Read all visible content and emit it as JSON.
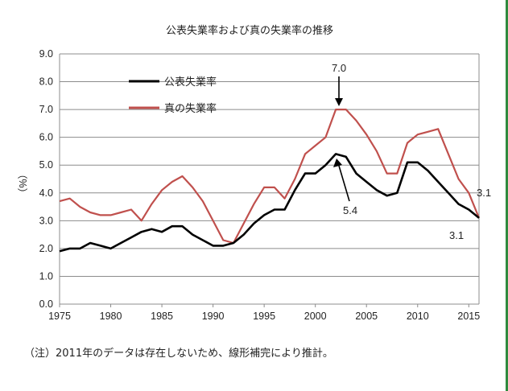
{
  "chart_data": {
    "type": "line",
    "title": "公表失業率および真の失業率の推移",
    "ylabel": "（%）",
    "xlabel": "",
    "ylim": [
      0,
      9
    ],
    "xlim": [
      1975,
      2016
    ],
    "yticks": [
      "0.0",
      "1.0",
      "2.0",
      "3.0",
      "4.0",
      "5.0",
      "6.0",
      "7.0",
      "8.0",
      "9.0"
    ],
    "xticks": [
      "1975",
      "1980",
      "1985",
      "1990",
      "1995",
      "2000",
      "2005",
      "2010",
      "2015"
    ],
    "grid": true,
    "legend_position": "top-left",
    "x": [
      1975,
      1976,
      1977,
      1978,
      1979,
      1980,
      1981,
      1982,
      1983,
      1984,
      1985,
      1986,
      1987,
      1988,
      1989,
      1990,
      1991,
      1992,
      1993,
      1994,
      1995,
      1996,
      1997,
      1998,
      1999,
      2000,
      2001,
      2002,
      2003,
      2004,
      2005,
      2006,
      2007,
      2008,
      2009,
      2010,
      2011,
      2012,
      2013,
      2014,
      2015,
      2016
    ],
    "series": [
      {
        "name": "公表失業率",
        "color": "#000000",
        "values": [
          1.9,
          2.0,
          2.0,
          2.2,
          2.1,
          2.0,
          2.2,
          2.4,
          2.6,
          2.7,
          2.6,
          2.8,
          2.8,
          2.5,
          2.3,
          2.1,
          2.1,
          2.2,
          2.5,
          2.9,
          3.2,
          3.4,
          3.4,
          4.1,
          4.7,
          4.7,
          5.0,
          5.4,
          5.3,
          4.7,
          4.4,
          4.1,
          3.9,
          4.0,
          5.1,
          5.1,
          4.8,
          4.4,
          4.0,
          3.6,
          3.4,
          3.1
        ]
      },
      {
        "name": "真の失業率",
        "color": "#c0504d",
        "values": [
          3.7,
          3.8,
          3.5,
          3.3,
          3.2,
          3.2,
          3.3,
          3.4,
          3.0,
          3.6,
          4.1,
          4.4,
          4.6,
          4.2,
          3.7,
          3.0,
          2.3,
          2.2,
          2.9,
          3.6,
          4.2,
          4.2,
          3.8,
          4.5,
          5.4,
          5.7,
          6.0,
          7.0,
          7.0,
          6.6,
          6.1,
          5.5,
          4.7,
          4.7,
          5.8,
          6.1,
          6.2,
          6.3,
          5.4,
          4.5,
          4.0,
          3.1
        ]
      }
    ],
    "annotations": [
      {
        "text": "7.0",
        "x": 2002.5,
        "y": 7.0,
        "arrow": true
      },
      {
        "text": "5.4",
        "x": 2002,
        "y": 5.4,
        "arrow": true
      },
      {
        "text": "3.1",
        "x": 2016,
        "y": 3.1,
        "series": "真の失業率"
      },
      {
        "text": "3.1",
        "x": 2016,
        "y": 3.1,
        "series": "公表失業率"
      }
    ]
  },
  "footnote": "（注）2011年のデータは存在しないため、線形補完により推計。"
}
